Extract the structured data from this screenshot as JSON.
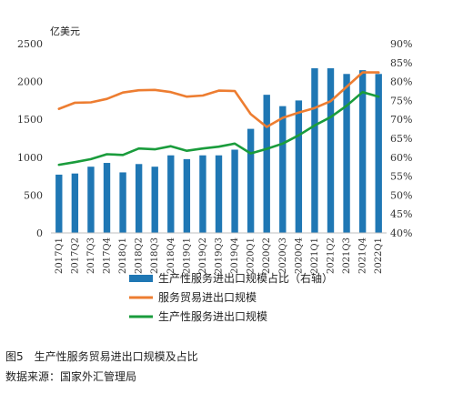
{
  "chart_data": {
    "type": "bar",
    "y_left_unit": "亿美元",
    "y_left_ticks": [
      "0",
      "500",
      "1000",
      "1500",
      "2000",
      "2500"
    ],
    "y_left_range": [
      0,
      2500
    ],
    "y_right_ticks": [
      "40%",
      "45%",
      "50%",
      "55%",
      "60%",
      "65%",
      "70%",
      "75%",
      "80%",
      "85%",
      "90%"
    ],
    "y_right_range": [
      40,
      90
    ],
    "categories": [
      "2017Q1",
      "2017Q2",
      "2017Q3",
      "2017Q4",
      "2018Q1",
      "2018Q2",
      "2018Q3",
      "2018Q4",
      "2019Q1",
      "2019Q2",
      "2019Q3",
      "2019Q4",
      "2020Q1",
      "2020Q2",
      "2020Q3",
      "2020Q4",
      "2021Q1",
      "2021Q2",
      "2021Q3",
      "2021Q4",
      "2022Q1"
    ],
    "series": [
      {
        "name": "生产性服务进出口规模占比（右轴）",
        "type": "bar",
        "axis": "right",
        "color": "#1f77b4",
        "values": [
          55.4,
          55.7,
          57.5,
          58.5,
          56.0,
          58.2,
          57.5,
          60.5,
          59.5,
          60.5,
          60.5,
          62.0,
          67.5,
          76.5,
          73.5,
          75.0,
          83.5,
          83.5,
          82.0,
          83.0,
          82.0
        ]
      },
      {
        "name": "服务贸易进出口规模",
        "type": "line",
        "axis": "left",
        "color": "#ed7d31",
        "values": [
          1640,
          1720,
          1725,
          1770,
          1855,
          1885,
          1890,
          1860,
          1800,
          1815,
          1880,
          1875,
          1570,
          1400,
          1520,
          1590,
          1650,
          1740,
          1930,
          2120,
          2120
        ]
      },
      {
        "name": "生产性服务进出口规模",
        "type": "line",
        "axis": "left",
        "color": "#1a9c3c",
        "values": [
          900,
          935,
          975,
          1040,
          1030,
          1115,
          1105,
          1145,
          1085,
          1115,
          1140,
          1180,
          1050,
          1110,
          1180,
          1290,
          1420,
          1530,
          1680,
          1860,
          1800
        ]
      }
    ]
  },
  "caption": {
    "figure_title": "图5　生产性服务贸易进出口规模及占比",
    "source": "数据来源：国家外汇管理局"
  }
}
